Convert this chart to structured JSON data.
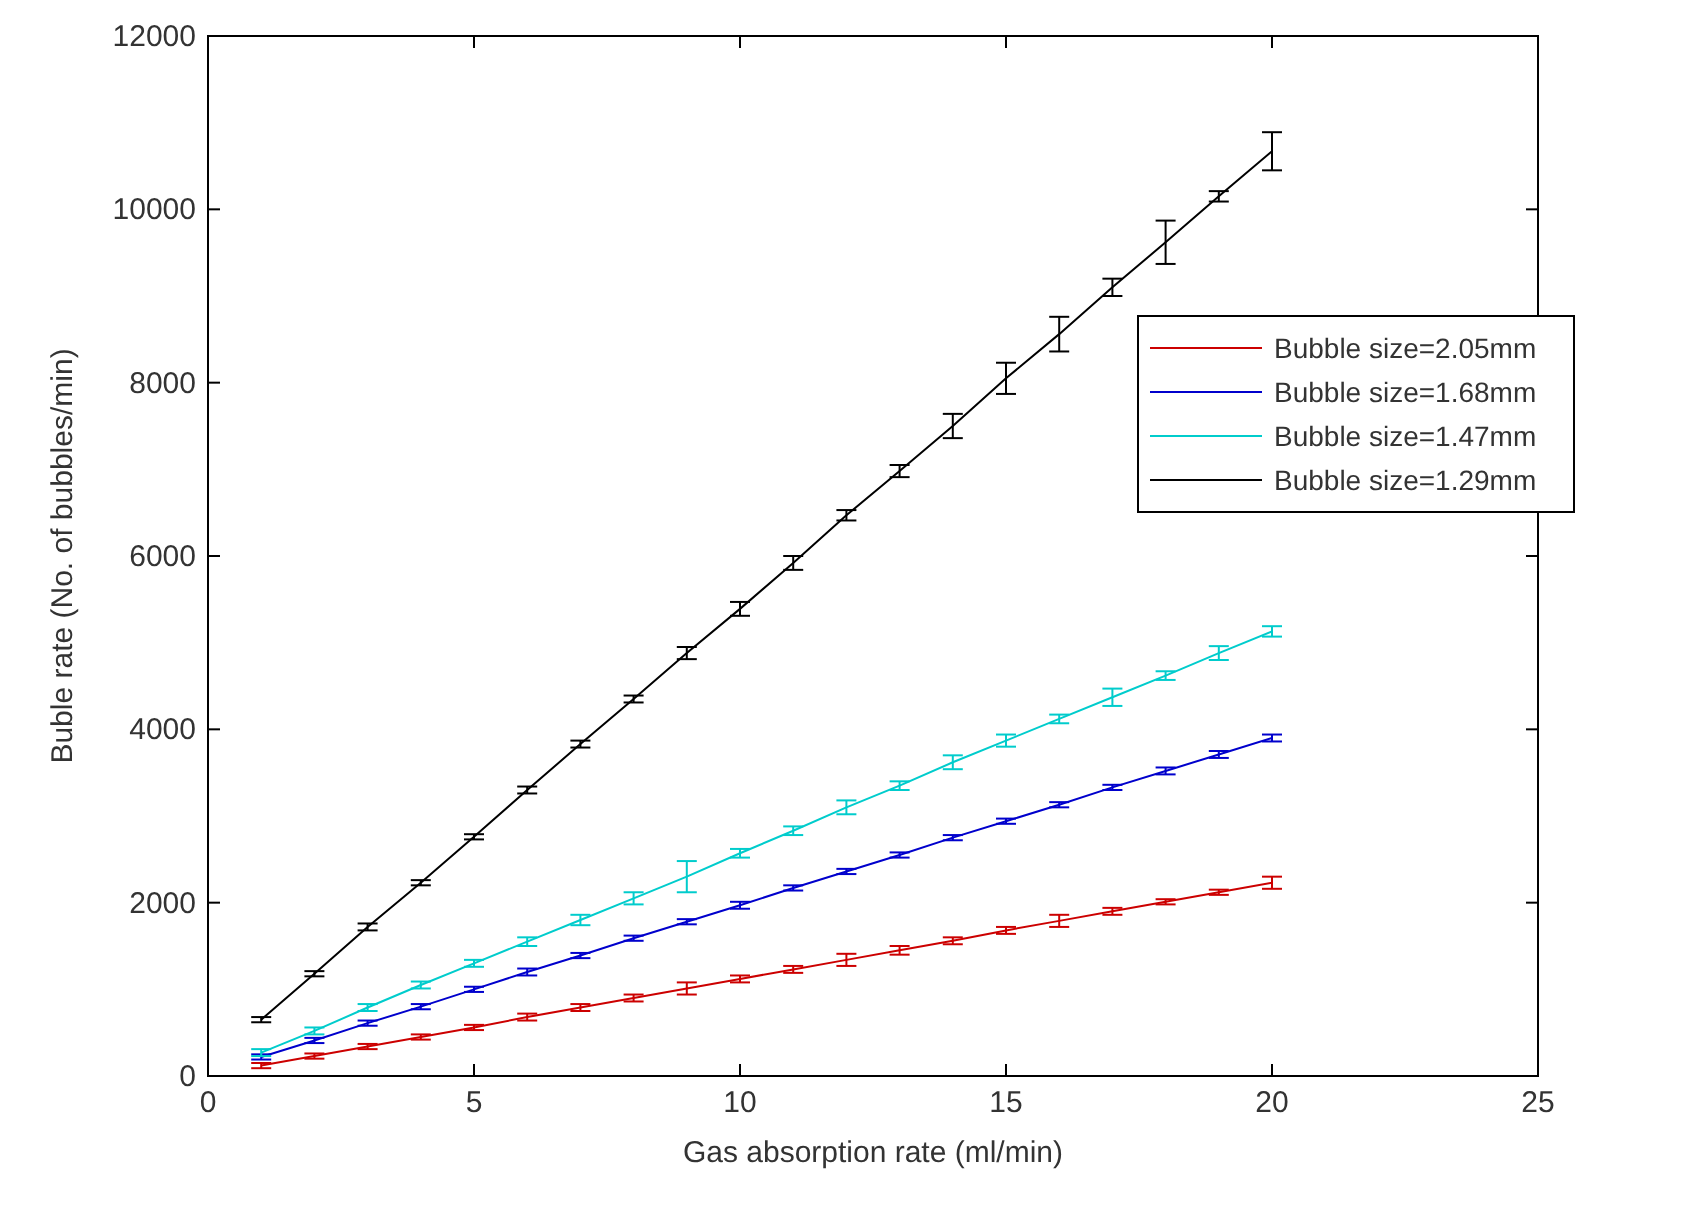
{
  "chart_data": {
    "type": "line",
    "xlabel": "Gas absorption rate (ml/min)",
    "ylabel": "Buble rate (No. of bubbles/min)",
    "x": [
      1,
      2,
      3,
      4,
      5,
      6,
      7,
      8,
      9,
      10,
      11,
      12,
      13,
      14,
      15,
      16,
      17,
      18,
      19,
      20
    ],
    "xlim": [
      0,
      25
    ],
    "xticks": [
      0,
      5,
      10,
      15,
      20,
      25
    ],
    "ylim": [
      0,
      12000
    ],
    "yticks": [
      0,
      2000,
      4000,
      6000,
      8000,
      10000,
      12000
    ],
    "legend": "top right",
    "marker": "none",
    "line_style": "solid",
    "grid": false,
    "series": [
      {
        "name": "Bubble size=2.05mm",
        "color": "#cc0000",
        "values": [
          120,
          230,
          340,
          450,
          560,
          680,
          790,
          900,
          1010,
          1120,
          1230,
          1340,
          1450,
          1560,
          1680,
          1790,
          1900,
          2010,
          2120,
          2230
        ],
        "errors": [
          30,
          30,
          30,
          30,
          30,
          40,
          40,
          40,
          70,
          40,
          40,
          70,
          50,
          40,
          40,
          70,
          40,
          30,
          30,
          70
        ]
      },
      {
        "name": "Bubble size=1.68mm",
        "color": "#0000cc",
        "values": [
          220,
          410,
          610,
          800,
          1000,
          1200,
          1390,
          1590,
          1780,
          1970,
          2170,
          2360,
          2550,
          2750,
          2940,
          3130,
          3330,
          3520,
          3710,
          3900
        ],
        "errors": [
          30,
          30,
          30,
          30,
          30,
          40,
          30,
          30,
          30,
          40,
          30,
          30,
          30,
          30,
          30,
          30,
          30,
          40,
          40,
          40
        ]
      },
      {
        "name": "Bubble size=1.47mm",
        "color": "#00cccc",
        "values": [
          270,
          520,
          790,
          1050,
          1300,
          1550,
          1800,
          2050,
          2300,
          2570,
          2830,
          3100,
          3350,
          3620,
          3870,
          4120,
          4370,
          4620,
          4880,
          5130
        ],
        "errors": [
          40,
          40,
          40,
          40,
          40,
          50,
          60,
          70,
          180,
          50,
          50,
          80,
          50,
          80,
          70,
          50,
          100,
          50,
          80,
          60
        ]
      },
      {
        "name": "Bubble size=1.29mm",
        "color": "#000000",
        "values": [
          650,
          1180,
          1720,
          2230,
          2760,
          3300,
          3830,
          4350,
          4880,
          5390,
          5920,
          6470,
          6980,
          7500,
          8050,
          8560,
          9100,
          9620,
          10150,
          10670
        ],
        "errors": [
          30,
          30,
          40,
          30,
          30,
          40,
          40,
          40,
          70,
          80,
          80,
          60,
          70,
          140,
          180,
          200,
          100,
          250,
          60,
          220
        ]
      }
    ]
  }
}
